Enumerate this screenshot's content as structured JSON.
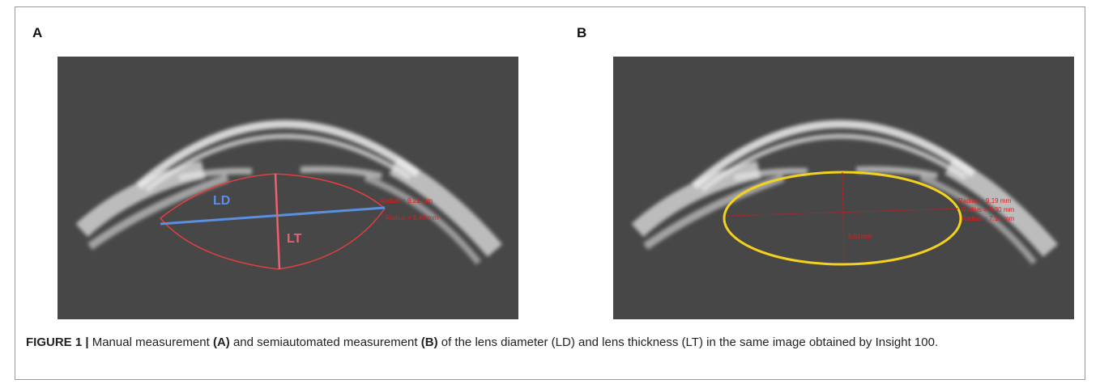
{
  "figure": {
    "panel_a": {
      "label": "A",
      "ld_label": "LD",
      "lt_label": "LT",
      "annotations": [
        "Radius = 9.21 mm",
        "Radius = 8.40 mm"
      ]
    },
    "panel_b": {
      "label": "B",
      "annotations": [
        "Radius = 9.19 mm",
        "Radius = 8.30 mm",
        "Radius = 7.15 mm",
        "5.51mm"
      ]
    },
    "caption": {
      "figure_label": "FIGURE 1 |",
      "part1": " Manual measurement ",
      "ref_a": "(A)",
      "part2": " and semiautomated measurement ",
      "ref_b": "(B)",
      "part3": " of the lens diameter (LD) and lens thickness (LT) in the same image obtained by Insight 100."
    }
  }
}
